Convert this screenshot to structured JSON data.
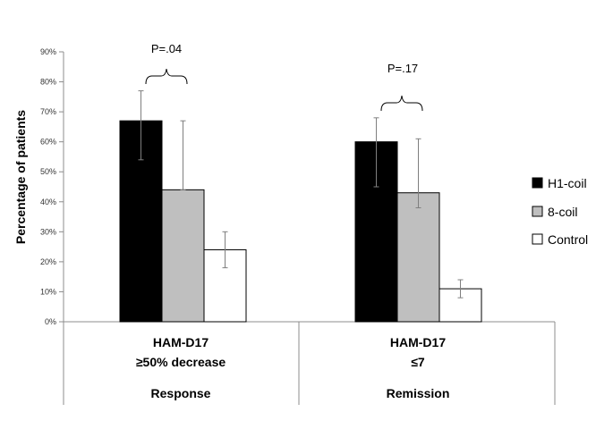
{
  "chart_data": {
    "type": "bar",
    "ylabel": "Percentage of patients",
    "ylim": [
      0,
      90
    ],
    "yticks": [
      "0%",
      "10%",
      "20%",
      "30%",
      "40%",
      "50%",
      "60%",
      "70%",
      "80%",
      "90%"
    ],
    "categories": [
      {
        "line1": "HAM-D17",
        "line2": "≥50% decrease",
        "group": "Response"
      },
      {
        "line1": "HAM-D17",
        "line2": "≤7",
        "group": "Remission"
      }
    ],
    "series": [
      {
        "name": "H1-coil",
        "color": "#000000",
        "values": [
          67,
          60
        ],
        "err_low": [
          54,
          45
        ],
        "err_high": [
          77,
          68
        ]
      },
      {
        "name": "8-coil",
        "color": "#bfbfbf",
        "values": [
          44,
          43
        ],
        "err_low": [
          44,
          38
        ],
        "err_high": [
          67,
          61
        ]
      },
      {
        "name": "Control",
        "color": "#ffffff",
        "values": [
          24,
          11
        ],
        "err_low": [
          18,
          8
        ],
        "err_high": [
          30,
          14
        ]
      }
    ],
    "annotations": [
      "P=.04",
      "P=.17"
    ],
    "legend_position": "right",
    "grid": false
  }
}
